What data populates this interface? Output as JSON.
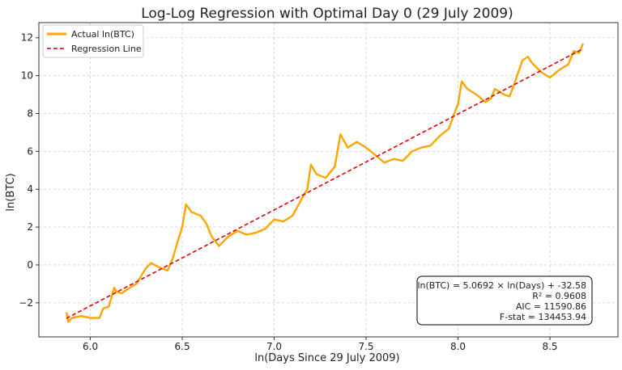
{
  "chart_data": {
    "type": "line",
    "title": "Log-Log Regression with Optimal Day 0 (29 July 2009)",
    "xlabel": "ln(Days Since 29 July 2009)",
    "ylabel": "ln(BTC)",
    "xlim": [
      5.72,
      8.87
    ],
    "ylim": [
      -3.8,
      12.8
    ],
    "xticks": [
      6.0,
      6.5,
      7.0,
      7.5,
      8.0,
      8.5
    ],
    "xtick_labels": [
      "6.0",
      "6.5",
      "7.0",
      "7.5",
      "8.0",
      "8.5"
    ],
    "yticks": [
      -2,
      0,
      2,
      4,
      6,
      8,
      10,
      12
    ],
    "ytick_labels": [
      "−2",
      "0",
      "2",
      "4",
      "6",
      "8",
      "10",
      "12"
    ],
    "grid": true,
    "legend_position": "top-left",
    "colors": {
      "actual": "#FFA500",
      "regression": "#E00000"
    },
    "series": [
      {
        "name": "Actual ln(BTC)",
        "style": "solid",
        "x": [
          5.87,
          5.88,
          5.9,
          5.95,
          6.0,
          6.05,
          6.07,
          6.1,
          6.13,
          6.14,
          6.17,
          6.2,
          6.25,
          6.3,
          6.33,
          6.37,
          6.42,
          6.45,
          6.48,
          6.5,
          6.52,
          6.55,
          6.6,
          6.63,
          6.66,
          6.7,
          6.72,
          6.75,
          6.8,
          6.85,
          6.9,
          6.95,
          7.0,
          7.05,
          7.1,
          7.15,
          7.18,
          7.2,
          7.23,
          7.28,
          7.33,
          7.36,
          7.4,
          7.45,
          7.5,
          7.55,
          7.6,
          7.65,
          7.7,
          7.75,
          7.8,
          7.85,
          7.9,
          7.95,
          7.98,
          8.0,
          8.02,
          8.05,
          8.1,
          8.15,
          8.18,
          8.2,
          8.25,
          8.28,
          8.3,
          8.35,
          8.38,
          8.4,
          8.42,
          8.45,
          8.5,
          8.55,
          8.6,
          8.63,
          8.66,
          8.68
        ],
        "y": [
          -2.5,
          -3.0,
          -2.8,
          -2.7,
          -2.8,
          -2.8,
          -2.3,
          -2.2,
          -1.2,
          -1.4,
          -1.5,
          -1.3,
          -1.0,
          -0.2,
          0.1,
          -0.1,
          -0.3,
          0.4,
          1.4,
          2.0,
          3.2,
          2.8,
          2.6,
          2.2,
          1.5,
          1.0,
          1.2,
          1.5,
          1.8,
          1.6,
          1.7,
          1.9,
          2.4,
          2.3,
          2.6,
          3.5,
          4.0,
          5.3,
          4.8,
          4.6,
          5.2,
          6.9,
          6.2,
          6.5,
          6.2,
          5.8,
          5.4,
          5.6,
          5.5,
          6.0,
          6.2,
          6.3,
          6.8,
          7.2,
          8.0,
          8.5,
          9.7,
          9.3,
          9.0,
          8.6,
          8.8,
          9.3,
          9.0,
          8.9,
          9.4,
          10.8,
          11.0,
          10.7,
          10.5,
          10.2,
          9.9,
          10.3,
          10.6,
          11.3,
          11.2,
          11.7
        ]
      },
      {
        "name": "Regression Line",
        "style": "dashed",
        "x": [
          5.87,
          8.68
        ],
        "y": [
          -2.82,
          11.42
        ]
      }
    ],
    "annotation": [
      "ln(BTC) = 5.0692 × ln(Days) + -32.58",
      "R² = 0.9608",
      "AIC = 11590.86",
      "F-stat = 134453.94"
    ]
  }
}
